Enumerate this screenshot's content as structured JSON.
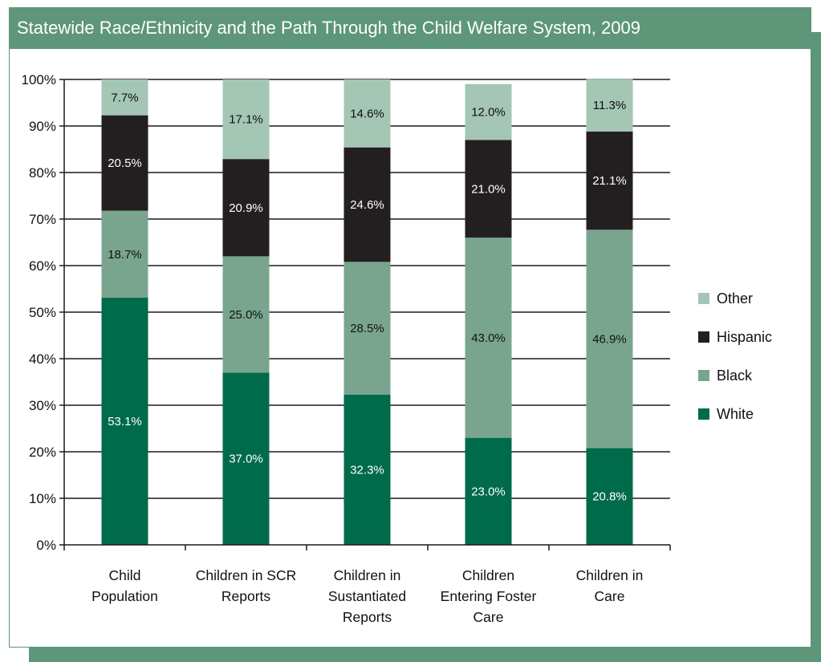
{
  "title": "Statewide Race/Ethnicity and the Path Through the Child Welfare System, 2009",
  "colors": {
    "White": "#006b4b",
    "Black": "#79a58f",
    "Hispanic": "#231f20",
    "Other": "#a3c6b5",
    "frame": "#5d9679"
  },
  "chart_data": {
    "type": "bar",
    "stacked": true,
    "title": "Statewide Race/Ethnicity and the Path Through the Child Welfare System, 2009",
    "xlabel": "",
    "ylabel": "",
    "ylim": [
      0,
      100
    ],
    "yticks": [
      "0%",
      "10%",
      "20%",
      "30%",
      "40%",
      "50%",
      "60%",
      "70%",
      "80%",
      "90%",
      "100%"
    ],
    "grid": true,
    "legend_position": "right",
    "categories": [
      [
        "Child",
        "Population"
      ],
      [
        "Children in SCR",
        "Reports"
      ],
      [
        "Children in",
        "Sustantiated",
        "Reports"
      ],
      [
        "Children",
        "Entering Foster",
        "Care"
      ],
      [
        "Children in",
        "Care"
      ]
    ],
    "series": [
      {
        "name": "White",
        "values": [
          53.1,
          37.0,
          32.3,
          23.0,
          20.8
        ],
        "labels": [
          "53.1%",
          "37.0%",
          "32.3%",
          "23.0%",
          "20.8%"
        ]
      },
      {
        "name": "Black",
        "values": [
          18.7,
          25.0,
          28.5,
          43.0,
          46.9
        ],
        "labels": [
          "18.7%",
          "25.0%",
          "28.5%",
          "43.0%",
          "46.9%"
        ]
      },
      {
        "name": "Hispanic",
        "values": [
          20.5,
          20.9,
          24.6,
          21.0,
          21.1
        ],
        "labels": [
          "20.5%",
          "20.9%",
          "24.6%",
          "21.0%",
          "21.1%"
        ]
      },
      {
        "name": "Other",
        "values": [
          7.7,
          17.1,
          14.6,
          12.0,
          11.3
        ],
        "labels": [
          "7.7%",
          "17.1%",
          "14.6%",
          "12.0%",
          "11.3%"
        ]
      }
    ],
    "legend_order": [
      "Other",
      "Hispanic",
      "Black",
      "White"
    ]
  }
}
